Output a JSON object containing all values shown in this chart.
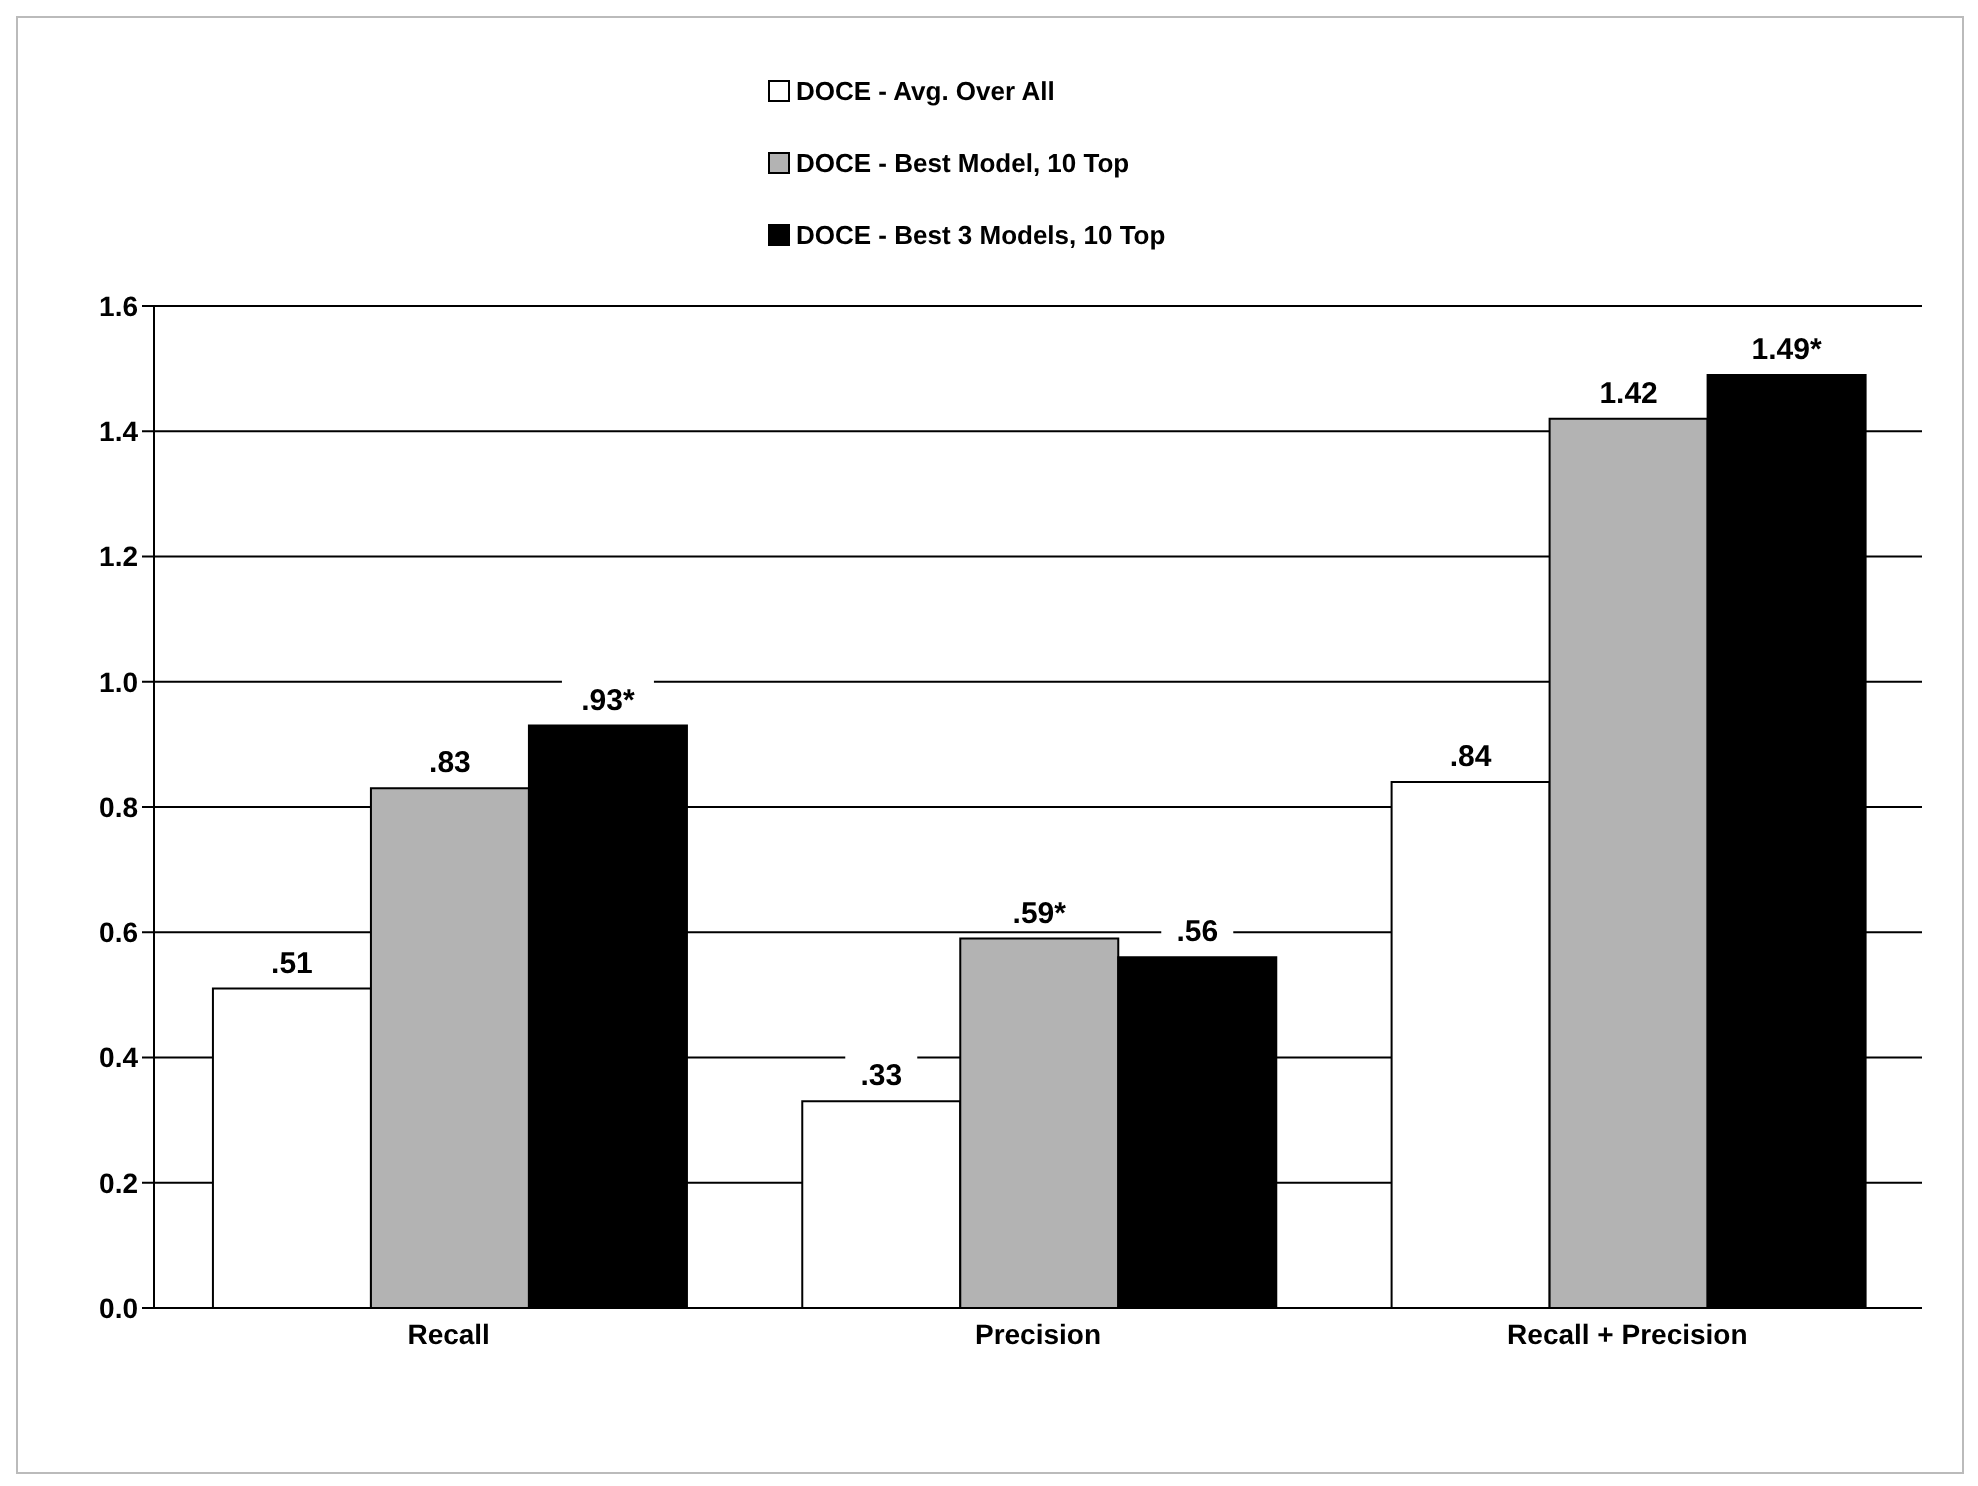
{
  "chart_data": {
    "type": "bar",
    "categories": [
      "Recall",
      "Precision",
      "Recall + Precision"
    ],
    "series": [
      {
        "name": "DOCE - Avg. Over All",
        "color": "#ffffff",
        "values": [
          0.51,
          0.33,
          0.84
        ],
        "value_labels": [
          ".51",
          ".33",
          ".84"
        ]
      },
      {
        "name": "DOCE - Best Model, 10 Top",
        "color": "#b3b3b3",
        "values": [
          0.83,
          0.59,
          1.42
        ],
        "value_labels": [
          ".83",
          ".59*",
          "1.42"
        ]
      },
      {
        "name": "DOCE - Best 3 Models, 10 Top",
        "color": "#000000",
        "values": [
          0.93,
          0.56,
          1.49
        ],
        "value_labels": [
          ".93*",
          ".56",
          "1.49*"
        ]
      }
    ],
    "ylim": [
      0,
      1.6
    ],
    "yticks": [
      {
        "value": 0,
        "label": "0.0"
      },
      {
        "value": 0.2,
        "label": "0.2"
      },
      {
        "value": 0.4,
        "label": "0.4"
      },
      {
        "value": 0.6,
        "label": "0.6"
      },
      {
        "value": 0.8,
        "label": "0.8"
      },
      {
        "value": 1,
        "label": "1.0"
      },
      {
        "value": 1.2,
        "label": "1.2"
      },
      {
        "value": 1.4,
        "label": "1.4"
      },
      {
        "value": 1.6,
        "label": "1.6"
      }
    ],
    "grid": "y",
    "legend": "top"
  }
}
